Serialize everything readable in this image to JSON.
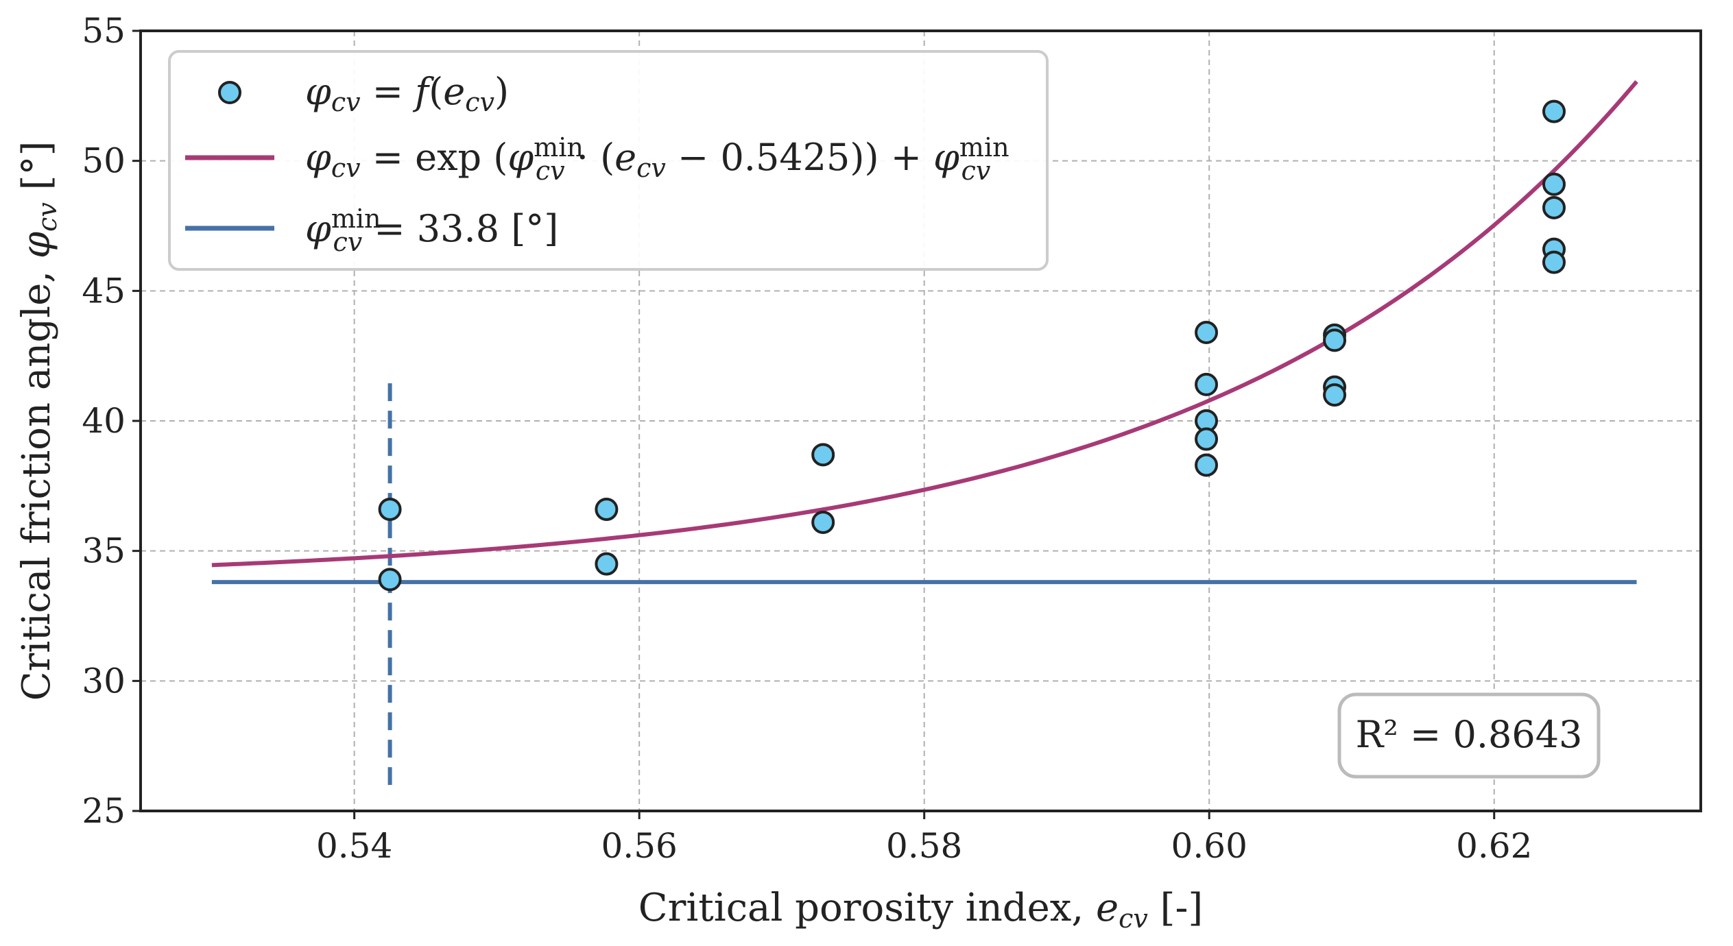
{
  "chart_data": {
    "type": "scatter",
    "xlabel": {
      "text": "Critical porosity index, ",
      "var": "e",
      "sub": "cv",
      "unit": " [-]"
    },
    "ylabel": {
      "text": "Critical friction angle, ",
      "var": "φ",
      "sub": "cv",
      "unit": " [°]"
    },
    "xlim": [
      0.525,
      0.6345
    ],
    "ylim": [
      25,
      55
    ],
    "xticks": [
      0.54,
      0.56,
      0.58,
      0.6,
      0.62
    ],
    "xtick_labels": [
      "0.54",
      "0.56",
      "0.58",
      "0.60",
      "0.62"
    ],
    "yticks": [
      25,
      30,
      35,
      40,
      45,
      50,
      55
    ],
    "ytick_labels": [
      "25",
      "30",
      "35",
      "40",
      "45",
      "50",
      "55"
    ],
    "grid": true,
    "points": [
      {
        "x": 0.5425,
        "y": 36.6
      },
      {
        "x": 0.5425,
        "y": 33.9
      },
      {
        "x": 0.5577,
        "y": 36.6
      },
      {
        "x": 0.5577,
        "y": 34.5
      },
      {
        "x": 0.5729,
        "y": 38.7
      },
      {
        "x": 0.5729,
        "y": 36.1
      },
      {
        "x": 0.5998,
        "y": 43.4
      },
      {
        "x": 0.5998,
        "y": 41.4
      },
      {
        "x": 0.5998,
        "y": 40.0
      },
      {
        "x": 0.5998,
        "y": 39.3
      },
      {
        "x": 0.5998,
        "y": 38.3
      },
      {
        "x": 0.6088,
        "y": 43.3
      },
      {
        "x": 0.6088,
        "y": 43.1
      },
      {
        "x": 0.6088,
        "y": 41.3
      },
      {
        "x": 0.6088,
        "y": 41.0
      },
      {
        "x": 0.6242,
        "y": 51.9
      },
      {
        "x": 0.6242,
        "y": 49.1
      },
      {
        "x": 0.6242,
        "y": 48.2
      },
      {
        "x": 0.6242,
        "y": 46.6
      },
      {
        "x": 0.6242,
        "y": 46.1
      }
    ],
    "fit_curve": {
      "phi_min": 33.8,
      "k": 33.8,
      "e0": 0.5425,
      "x_range": [
        0.53,
        0.63
      ]
    },
    "hline": {
      "y": 33.8,
      "x_range": [
        0.53,
        0.63
      ]
    },
    "vline": {
      "x": 0.5425,
      "y_range": [
        26,
        41.8
      ],
      "style": "dashed"
    },
    "colors": {
      "points": "#6fcbef",
      "point_edge": "#222222",
      "fit": "#a73a76",
      "hline": "#4572a7",
      "vline": "#4572a7",
      "grid": "#b0b0b0"
    },
    "legend": {
      "placement": "top-left",
      "entries": [
        {
          "marker": "point",
          "label": "φcv = f(ecv)"
        },
        {
          "marker": "line-fit",
          "label": "φcv = exp (φcvmin · (ecv − 0.5425)) + φcvmin"
        },
        {
          "marker": "line-hline",
          "label": "φcvmin = 33.8 [°]"
        }
      ]
    },
    "annotation": {
      "text": "R² = 0.8643",
      "placement": "bottom-right"
    }
  }
}
